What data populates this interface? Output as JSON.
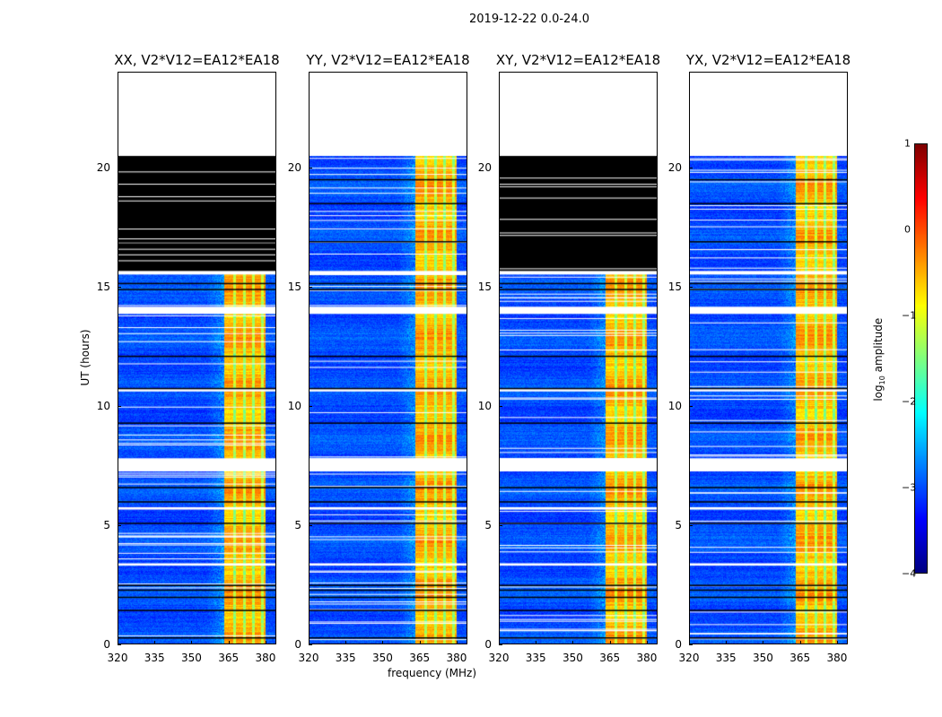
{
  "suptitle": "2019-12-22 0.0-24.0",
  "chart_data": {
    "type": "heatmap",
    "title": "2019-12-22 0.0-24.0",
    "xlabel": "frequency (MHz)",
    "ylabel": "UT (hours)",
    "xlim": [
      320,
      384.4
    ],
    "ylim": [
      0,
      24
    ],
    "xticks": [
      "320",
      "335",
      "350",
      "365",
      "380"
    ],
    "xtick_values": [
      320,
      335,
      350,
      365,
      380
    ],
    "yticks": [
      "0",
      "5",
      "10",
      "15",
      "20"
    ],
    "ytick_values": [
      0,
      5,
      10,
      15,
      20
    ],
    "panels": [
      {
        "title": "XX, V2*V12=EA12*EA18",
        "black_block_hours": [
          15.6,
          20.5
        ]
      },
      {
        "title": "YY, V2*V12=EA12*EA18",
        "black_block_hours": null
      },
      {
        "title": "XY, V2*V12=EA12*EA18",
        "black_block_hours": [
          15.6,
          20.5
        ]
      },
      {
        "title": "YX, V2*V12=EA12*EA18",
        "black_block_hours": null
      }
    ],
    "no_data_hours": [
      20.5,
      24
    ],
    "flagged_white_hours": [
      [
        13.85,
        14.15
      ],
      [
        7.25,
        7.8
      ],
      [
        15.5,
        15.65
      ],
      [
        10.6,
        10.7
      ],
      [
        3.3,
        3.4
      ],
      [
        5.65,
        5.75
      ]
    ],
    "black_line_hours": [
      0.3,
      1.45,
      2.0,
      2.3,
      2.5,
      5.1,
      6.0,
      6.6,
      9.3,
      10.75,
      12.1,
      14.9,
      15.15,
      16.9,
      18.5,
      19.5
    ],
    "rfi_band_mhz": [
      363,
      380
    ],
    "band_gap_mhz": [
      367.3,
      371.2,
      375.0,
      378.5
    ],
    "background_log10_amplitude": -3,
    "band_log10_amplitude": -0.5,
    "colorbar": {
      "label": "log10 amplitude",
      "label_main": "log",
      "label_sub": "10",
      "label_rest": " amplitude",
      "range": [
        -4,
        1
      ],
      "ticks": [
        "1",
        "0",
        "−1",
        "−2",
        "−3",
        "−4"
      ],
      "tick_values": [
        1,
        0,
        -1,
        -2,
        -3,
        -4
      ],
      "colormap": "jet"
    }
  }
}
